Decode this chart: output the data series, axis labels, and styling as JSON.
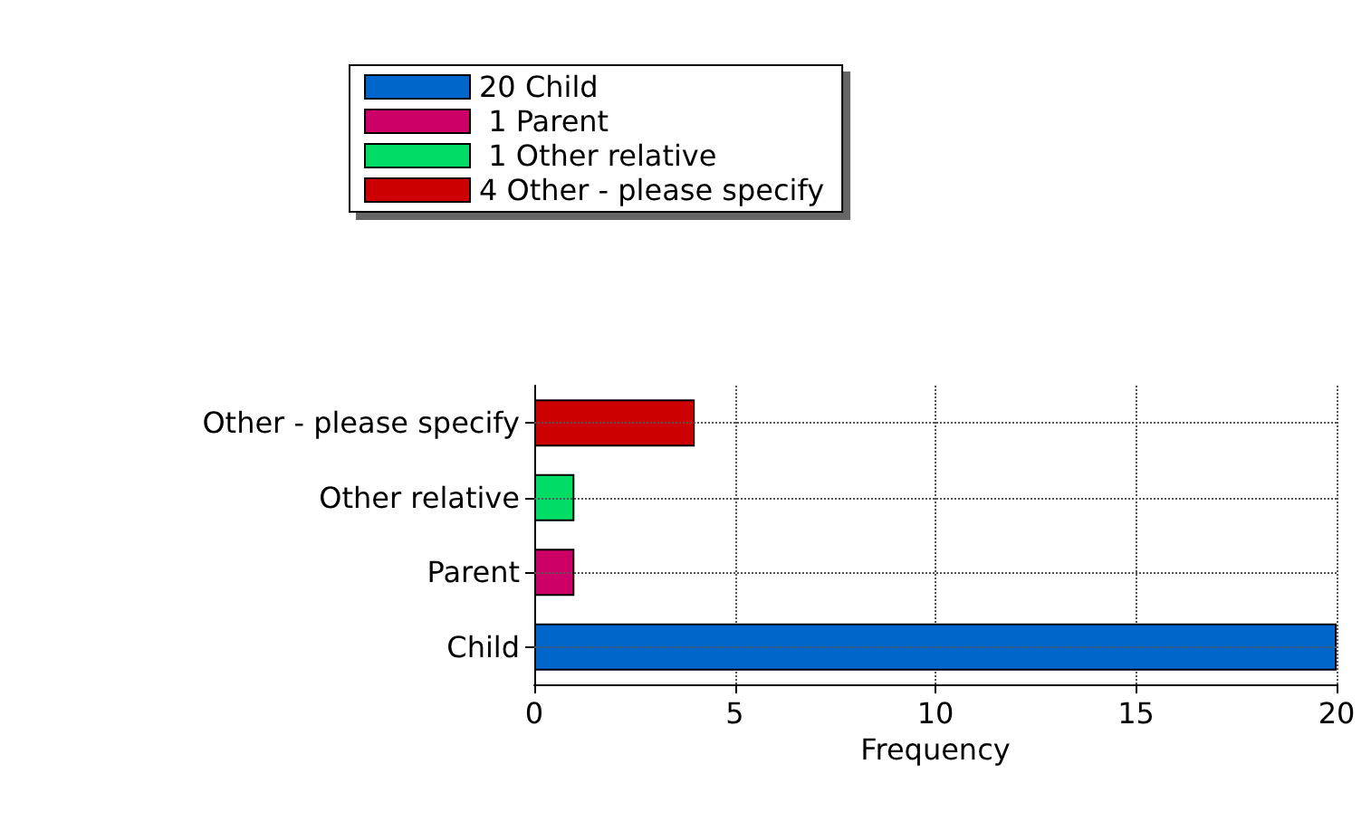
{
  "chart_data": {
    "type": "bar",
    "orientation": "horizontal",
    "categories": [
      "Other - please specify",
      "Other relative",
      "Parent",
      "Child"
    ],
    "series": [
      {
        "name": "20 Child",
        "color": "#0066cc",
        "values": [
          null,
          null,
          null,
          20
        ]
      },
      {
        "name": " 1 Parent",
        "color": "#cc0066",
        "values": [
          null,
          null,
          1,
          null
        ]
      },
      {
        "name": " 1 Other relative",
        "color": "#00dd66",
        "values": [
          null,
          1,
          null,
          null
        ]
      },
      {
        "name": "4 Other - please specify",
        "color": "#cc0000",
        "values": [
          4,
          null,
          null,
          null
        ]
      }
    ],
    "xlabel": "Frequency",
    "xlim": [
      0,
      20
    ],
    "xticks": [
      0,
      5,
      10,
      15,
      20
    ],
    "grid": true,
    "legend": "top"
  }
}
